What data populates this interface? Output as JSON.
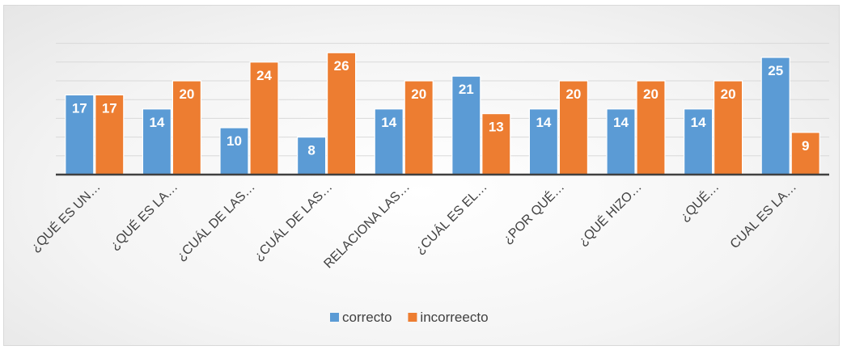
{
  "chart_data": {
    "type": "bar",
    "categories": [
      "¿QUÉ ES UN…",
      "¿QUÉ ES LA…",
      "¿CUÁL DE LAS…",
      "¿CUÁL DE LAS…",
      "RELACIONA LAS…",
      "¿CUÁL ES EL…",
      "¿POR QUÉ…",
      "¿QUÉ HIZO…",
      "¿QUÉ…",
      "CUAL ES LA…"
    ],
    "series": [
      {
        "name": "correcto",
        "color": "#5b9bd5",
        "values": [
          17,
          14,
          10,
          8,
          14,
          21,
          14,
          14,
          14,
          25
        ]
      },
      {
        "name": "incorreecto",
        "color": "#ed7d31",
        "values": [
          17,
          20,
          24,
          26,
          20,
          13,
          20,
          20,
          20,
          9
        ]
      }
    ],
    "ylim": [
      0,
      30
    ],
    "grid": true,
    "legend_position": "bottom"
  }
}
